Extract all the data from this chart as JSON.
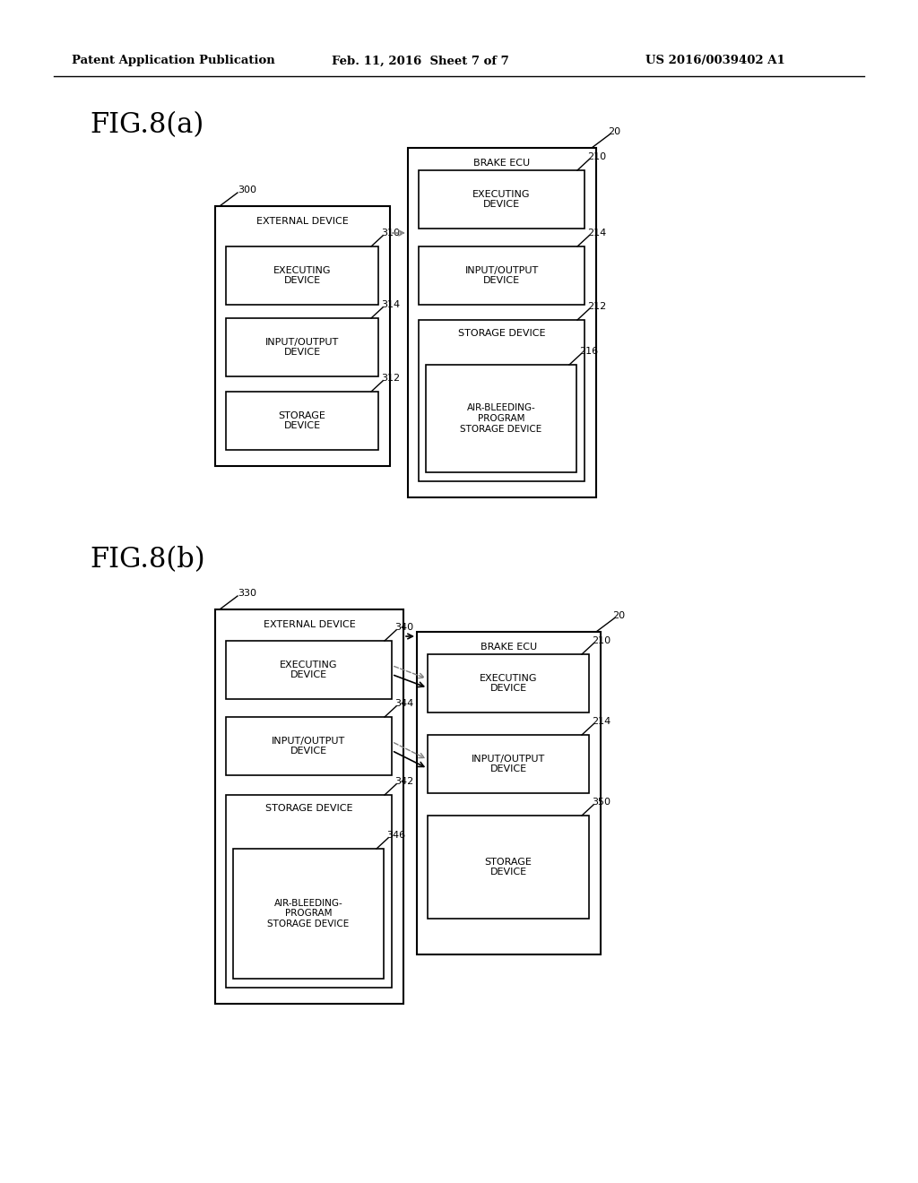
{
  "bg_color": "#ffffff",
  "header_left": "Patent Application Publication",
  "header_center": "Feb. 11, 2016  Sheet 7 of 7",
  "header_right": "US 2016/0039402 A1",
  "fig_a_label": "FIG.8(a)",
  "fig_b_label": "FIG.8(b)"
}
